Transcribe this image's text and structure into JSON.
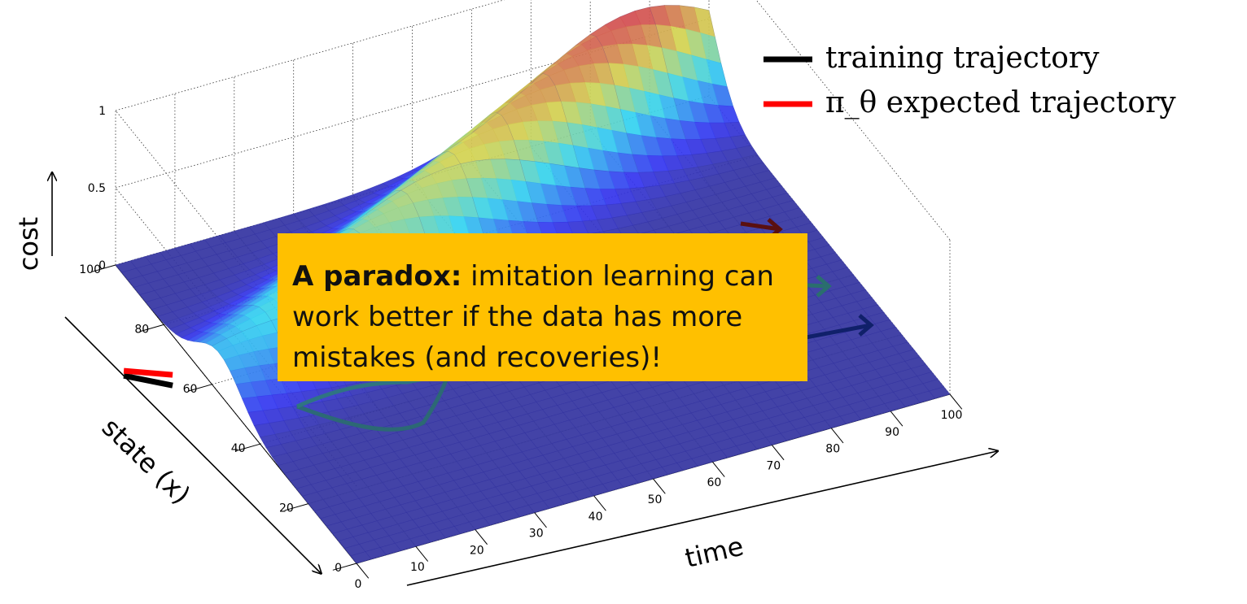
{
  "chart_data": {
    "type": "surface3d",
    "legend": {
      "placement": "top-right",
      "items": [
        {
          "label": "training trajectory",
          "color": "#000000"
        },
        {
          "label": "π_θ expected trajectory",
          "color": "#ff0000"
        }
      ]
    },
    "axes": {
      "z": {
        "label": "cost",
        "range": [
          0,
          1
        ],
        "ticks": [
          "0",
          "0.5",
          "1"
        ]
      },
      "x": {
        "label": "state (x)",
        "range": [
          0,
          100
        ],
        "ticks": [
          "0",
          "20",
          "40",
          "60",
          "80",
          "100"
        ]
      },
      "time": {
        "label": "time",
        "range": [
          0,
          100
        ],
        "ticks": [
          "0",
          "10",
          "20",
          "30",
          "40",
          "50",
          "60",
          "70",
          "80",
          "90",
          "100"
        ]
      }
    },
    "grid": true,
    "colormap": "jet",
    "surface": {
      "valley_center_state": [
        [
          0,
          45
        ],
        [
          20,
          55
        ],
        [
          40,
          65
        ],
        [
          60,
          75
        ],
        [
          80,
          85
        ],
        [
          100,
          95
        ]
      ],
      "valley_cost": 0.0,
      "ridge_cost": 1.0
    }
  },
  "callout": {
    "bold": "A paradox:",
    "text": " imitation learning can work better if the data has more mistakes (and recoveries)!"
  }
}
